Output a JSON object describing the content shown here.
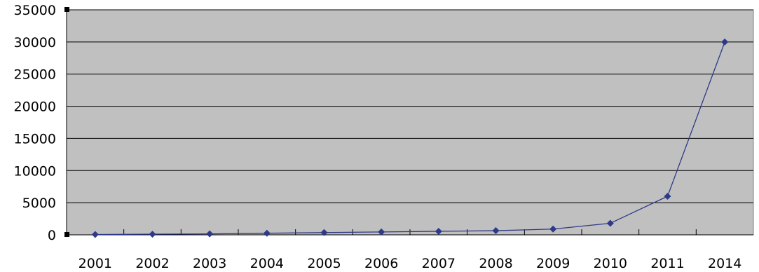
{
  "chart_data": {
    "type": "line",
    "title": "",
    "xlabel": "",
    "ylabel": "",
    "categories": [
      "2001",
      "2002",
      "2003",
      "2004",
      "2005",
      "2006",
      "2007",
      "2008",
      "2009",
      "2010",
      "2011",
      "2014"
    ],
    "series": [
      {
        "values": [
          50,
          100,
          150,
          250,
          350,
          450,
          550,
          650,
          900,
          1800,
          6000,
          30000
        ],
        "color": "#2e3a87",
        "marker": "diamond"
      }
    ],
    "ylim": [
      0,
      35000
    ],
    "yticks": [
      0,
      5000,
      10000,
      15000,
      20000,
      25000,
      30000,
      35000
    ],
    "grid": "horizontal",
    "legend": "none",
    "colors": {
      "plot_background": "#c0c0c0",
      "gridline": "#000000",
      "series_line": "#2e3a87"
    }
  }
}
